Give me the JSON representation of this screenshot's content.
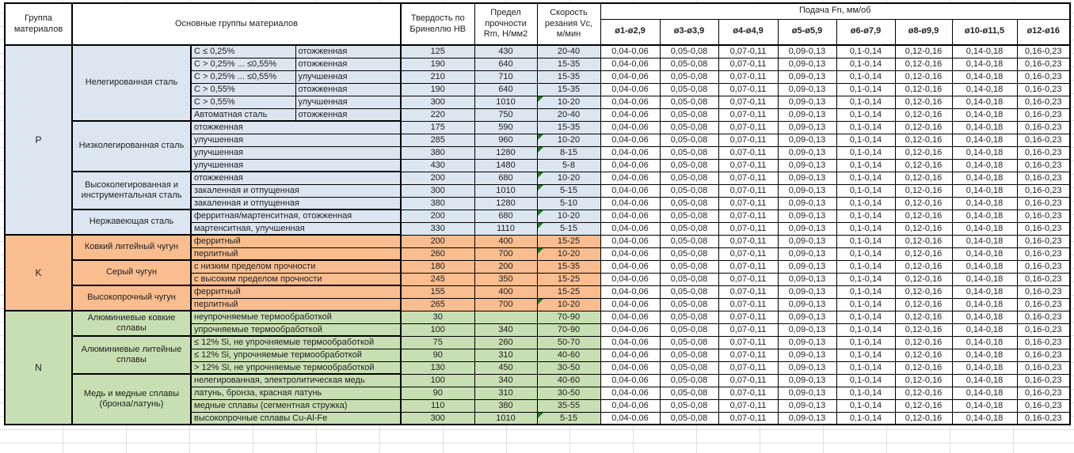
{
  "header": {
    "col_group": "Группа материалов",
    "col_main_groups": "Основные группы материалов",
    "col_hardness": "Твердость по Бринеллю HB",
    "col_strength": "Предел прочности Rm, Н/мм2",
    "col_speed": "Скорость резания Vc, м/мин",
    "feed_title": "Подача Fn, мм/об",
    "feed_columns": [
      "ø1-ø2,9",
      "ø3-ø3,9",
      "ø4-ø4,9",
      "ø5-ø5,9",
      "ø6-ø7,9",
      "ø8-ø9,9",
      "ø10-ø11,5",
      "ø12-ø16"
    ]
  },
  "colors": {
    "group_P": "#DCE6F1",
    "group_K": "#F9BD8F",
    "group_N": "#C8DFB3",
    "feed_cell": "#FFFFFF",
    "note_marker": "#1F7D1F"
  },
  "feed_values": [
    "0,04-0,06",
    "0,05-0,08",
    "0,07-0,11",
    "0,09-0,13",
    "0,1-0,14",
    "0,12-0,16",
    "0,14-0,18",
    "0,16-0,23"
  ],
  "feed_values_apply_to_all_rows": true,
  "groups": [
    {
      "code": "P",
      "color_key": "group_P",
      "subgroups": [
        {
          "name": "Нелегированная сталь",
          "rows": [
            {
              "spec": "C ≤ 0,25%",
              "state": "отожженная",
              "hb": "125",
              "rm": "430",
              "vc": "20-40",
              "note": false
            },
            {
              "spec": "C > 0,25% ... ≤0,55%",
              "state": "отожженная",
              "hb": "190",
              "rm": "640",
              "vc": "15-35",
              "note": false
            },
            {
              "spec": "C > 0,25% ... ≤0,55%",
              "state": "улучшенная",
              "hb": "210",
              "rm": "710",
              "vc": "15-35",
              "note": false
            },
            {
              "spec": "C > 0,55%",
              "state": "отожженная",
              "hb": "190",
              "rm": "640",
              "vc": "15-35",
              "note": false
            },
            {
              "spec": "C > 0,55%",
              "state": "улучшенная",
              "hb": "300",
              "rm": "1010",
              "vc": "10-20",
              "note": true
            },
            {
              "spec": "Автоматная сталь",
              "state": "отожженная",
              "hb": "220",
              "rm": "750",
              "vc": "20-40",
              "note": false
            }
          ]
        },
        {
          "name": "Низколегированная сталь",
          "rows": [
            {
              "spec": "отожженная",
              "state": null,
              "hb": "175",
              "rm": "590",
              "vc": "15-35",
              "note": false
            },
            {
              "spec": "улучшенная",
              "state": null,
              "hb": "285",
              "rm": "960",
              "vc": "10-20",
              "note": true
            },
            {
              "spec": "улучшенная",
              "state": null,
              "hb": "380",
              "rm": "1280",
              "vc": "8-15",
              "note": true
            },
            {
              "spec": "улучшенная",
              "state": null,
              "hb": "430",
              "rm": "1480",
              "vc": "5-8",
              "note": false
            }
          ]
        },
        {
          "name": "Высоколегированная и инструментальная сталь",
          "rows": [
            {
              "spec": "отожженная",
              "state": null,
              "hb": "200",
              "rm": "680",
              "vc": "10-20",
              "note": true
            },
            {
              "spec": "закаленная и отпущенная",
              "state": null,
              "hb": "300",
              "rm": "1010",
              "vc": "5-15",
              "note": true
            },
            {
              "spec": "закаленная и отпущенная",
              "state": null,
              "hb": "380",
              "rm": "1280",
              "vc": "5-10",
              "note": false
            }
          ]
        },
        {
          "name": "Нержавеющая сталь",
          "rows": [
            {
              "spec": "ферритная/мартенситная, отожженная",
              "state": null,
              "hb": "200",
              "rm": "680",
              "vc": "10-20",
              "note": true
            },
            {
              "spec": "мартенситная, улучшенная",
              "state": null,
              "hb": "330",
              "rm": "1110",
              "vc": "5-15",
              "note": true
            }
          ]
        }
      ]
    },
    {
      "code": "K",
      "color_key": "group_K",
      "subgroups": [
        {
          "name": "Ковкий литейный чугун",
          "rows": [
            {
              "spec": "ферритный",
              "state": null,
              "hb": "200",
              "rm": "400",
              "vc": "15-25",
              "note": false
            },
            {
              "spec": "перлитный",
              "state": null,
              "hb": "260",
              "rm": "700",
              "vc": "10-20",
              "note": true
            }
          ]
        },
        {
          "name": "Серый чугун",
          "rows": [
            {
              "spec": "с низким пределом прочности",
              "state": null,
              "hb": "180",
              "rm": "200",
              "vc": "15-35",
              "note": false
            },
            {
              "spec": "с высоким пределом прочности",
              "state": null,
              "hb": "245",
              "rm": "350",
              "vc": "15-25",
              "note": false
            }
          ]
        },
        {
          "name": "Высокопрочный чугун",
          "rows": [
            {
              "spec": "ферритный",
              "state": null,
              "hb": "155",
              "rm": "400",
              "vc": "15-25",
              "note": false
            },
            {
              "spec": "перлитный",
              "state": null,
              "hb": "265",
              "rm": "700",
              "vc": "10-20",
              "note": true
            }
          ]
        }
      ]
    },
    {
      "code": "N",
      "color_key": "group_N",
      "subgroups": [
        {
          "name": "Алюминиевые ковкие сплавы",
          "rows": [
            {
              "spec": "неупрочняемые термообработкой",
              "state": null,
              "hb": "30",
              "rm": "",
              "vc": "70-90",
              "note": false
            },
            {
              "spec": "упрочняемые термообработкой",
              "state": null,
              "hb": "100",
              "rm": "340",
              "vc": "70-90",
              "note": false
            }
          ]
        },
        {
          "name": "Алюминиевые литейные сплавы",
          "rows": [
            {
              "spec": "≤ 12% Si, не упрочняемые термообработкой",
              "state": null,
              "hb": "75",
              "rm": "260",
              "vc": "50-70",
              "note": false
            },
            {
              "spec": "≤ 12% Si, упрочняемые термообработкой",
              "state": null,
              "hb": "90",
              "rm": "310",
              "vc": "40-60",
              "note": false
            },
            {
              "spec": "> 12% Si, не упрочняемые термообработкой",
              "state": null,
              "hb": "130",
              "rm": "450",
              "vc": "30-50",
              "note": false
            }
          ]
        },
        {
          "name": "Медь и медные сплавы (бронза/латунь)",
          "rows": [
            {
              "spec": "нелегированная, электролитическая медь",
              "state": null,
              "hb": "100",
              "rm": "340",
              "vc": "40-60",
              "note": false
            },
            {
              "spec": "латунь, бронза, красная латунь",
              "state": null,
              "hb": "90",
              "rm": "310",
              "vc": "30-50",
              "note": false
            },
            {
              "spec": "медные сплавы (сегментная стружка)",
              "state": null,
              "hb": "110",
              "rm": "380",
              "vc": "35-55",
              "note": false
            },
            {
              "spec": "высокопрочные сплавы Cu-Al-Fe",
              "state": null,
              "hb": "300",
              "rm": "1010",
              "vc": "5-15",
              "note": true
            }
          ]
        }
      ]
    }
  ]
}
